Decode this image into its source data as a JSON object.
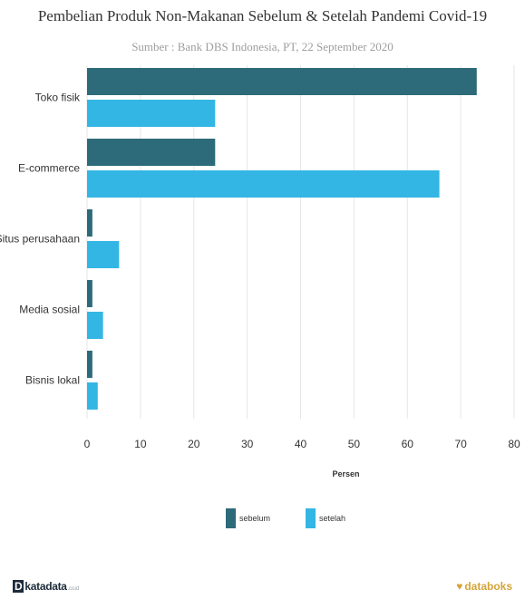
{
  "title": "Pembelian Produk Non-Makanan Sebelum & Setelah Pandemi Covid-19",
  "subtitle": "Sumber : Bank DBS Indonesia, PT, 22 September 2020",
  "colors": {
    "sebelum": "#2e6b7a",
    "setelah": "#34b6e4",
    "grid": "#e6e6e6"
  },
  "chart_data": {
    "type": "bar",
    "orientation": "horizontal",
    "title": "Pembelian Produk Non-Makanan Sebelum & Setelah Pandemi Covid-19",
    "subtitle": "Sumber : Bank DBS Indonesia, PT, 22 September 2020",
    "categories": [
      "Toko fisik",
      "E-commerce",
      "Situs perusahaan",
      "Media sosial",
      "Bisnis lokal"
    ],
    "series": [
      {
        "name": "sebelum",
        "values": [
          73,
          24,
          1,
          1,
          1
        ]
      },
      {
        "name": "setelah",
        "values": [
          24,
          66,
          6,
          3,
          2
        ]
      }
    ],
    "xlabel": "Persen",
    "ylabel": "",
    "xlim": [
      0,
      80
    ],
    "ticks": [
      0,
      10,
      20,
      30,
      40,
      50,
      60,
      70,
      80
    ],
    "grid": true,
    "legend_position": "bottom"
  },
  "legend": [
    {
      "label": "sebelum",
      "color": "#2e6b7a"
    },
    {
      "label": "setelah",
      "color": "#34b6e4"
    }
  ],
  "footer": {
    "left_logo_mark": "D",
    "left_logo_text": "katadata",
    "left_logo_small": ".co.id",
    "right_logo_mark": "♥",
    "right_logo_text": "databoks"
  }
}
